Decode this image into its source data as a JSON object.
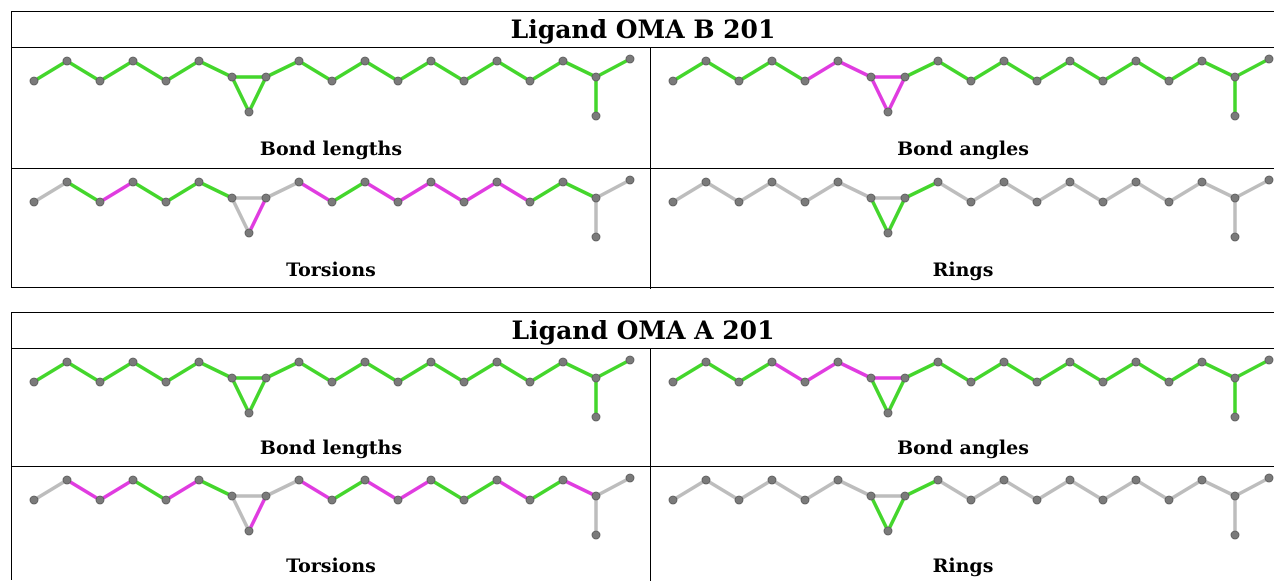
{
  "ligands": [
    {
      "title": "Ligand OMA B 201",
      "panels": [
        {
          "caption": "Bond lengths",
          "colors": [
            "g",
            "g",
            "g",
            "g",
            "g",
            "g",
            "g",
            "g",
            "g",
            "g",
            "g",
            "g",
            "g",
            "g",
            "g",
            "g",
            "g",
            "g",
            "g",
            "g",
            "g",
            "g"
          ]
        },
        {
          "caption": "Bond angles",
          "colors": [
            "g",
            "g",
            "g",
            "g",
            "m",
            "m",
            "m",
            "g",
            "m",
            "m",
            "g",
            "g",
            "g",
            "g",
            "g",
            "g",
            "g",
            "g",
            "g",
            "g",
            "g",
            "g"
          ]
        },
        {
          "caption": "Torsions",
          "colors": [
            "y",
            "g",
            "m",
            "g",
            "g",
            "g",
            "y",
            "y",
            "y",
            "m",
            "m",
            "g",
            "m",
            "m",
            "m",
            "m",
            "m",
            "g",
            "g",
            "y",
            "y",
            "y"
          ]
        },
        {
          "caption": "Rings",
          "colors": [
            "y",
            "y",
            "y",
            "y",
            "y",
            "y",
            "y",
            "g",
            "g",
            "g",
            "y",
            "y",
            "y",
            "y",
            "y",
            "y",
            "y",
            "y",
            "y",
            "y",
            "y",
            "y"
          ]
        }
      ]
    },
    {
      "title": "Ligand OMA A 201",
      "panels": [
        {
          "caption": "Bond lengths",
          "colors": [
            "g",
            "g",
            "g",
            "g",
            "g",
            "g",
            "g",
            "g",
            "g",
            "g",
            "g",
            "g",
            "g",
            "g",
            "g",
            "g",
            "g",
            "g",
            "g",
            "g",
            "g",
            "g"
          ]
        },
        {
          "caption": "Bond angles",
          "colors": [
            "g",
            "g",
            "g",
            "m",
            "m",
            "m",
            "m",
            "g",
            "g",
            "g",
            "g",
            "g",
            "g",
            "g",
            "g",
            "g",
            "g",
            "g",
            "g",
            "g",
            "g",
            "g"
          ]
        },
        {
          "caption": "Torsions",
          "colors": [
            "y",
            "m",
            "m",
            "g",
            "m",
            "g",
            "y",
            "y",
            "y",
            "m",
            "m",
            "g",
            "m",
            "m",
            "g",
            "g",
            "m",
            "g",
            "m",
            "y",
            "y",
            "y"
          ]
        },
        {
          "caption": "Rings",
          "colors": [
            "y",
            "y",
            "y",
            "y",
            "y",
            "y",
            "y",
            "g",
            "g",
            "g",
            "y",
            "y",
            "y",
            "y",
            "y",
            "y",
            "y",
            "y",
            "y",
            "y",
            "y",
            "y"
          ]
        }
      ]
    }
  ],
  "palette": {
    "g": "#44d62c",
    "m": "#e03ce0",
    "y": "#bdbdbd",
    "atom": "#7a7a7a"
  }
}
